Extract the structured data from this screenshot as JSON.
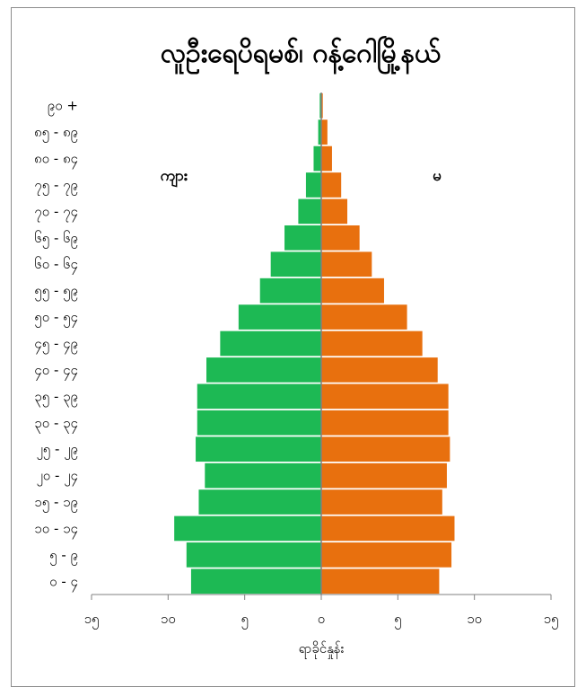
{
  "chart_data": {
    "type": "bar",
    "orientation": "horizontal",
    "title": "လူဦးရေပိရမစ်၊ ဂန့်ဂေါမြို့နယ်",
    "xlabel": "ရာခိုင်နှုန်း",
    "ylabel": "",
    "xlim": [
      -15,
      15
    ],
    "x_tick_values": [
      -15,
      -10,
      -5,
      0,
      5,
      10,
      15
    ],
    "x_tick_labels": [
      "၁၅",
      "၁၀",
      "၅",
      "၀",
      "၅",
      "၁၀",
      "၁၅"
    ],
    "categories": [
      "၀ - ၄",
      "၅ - ၉",
      "၁၀ - ၁၄",
      "၁၅ - ၁၉",
      "၂၀ - ၂၄",
      "၂၅ - ၂၉",
      "၃၀ - ၃၄",
      "၃၅ - ၃၉",
      "၄၀ - ၄၄",
      "၄၅ - ၄၉",
      "၅၀ - ၅၄",
      "၅၅ - ၅၉",
      "၆၀ - ၆၄",
      "၆၅ - ၆၉",
      "၇၀ - ၇၄",
      "၇၅ - ၇၉",
      "၈၀ - ၈၄",
      "၈၅ - ၈၉",
      "၉၀ +"
    ],
    "series": [
      {
        "name": "ကျား",
        "side": "left",
        "color": "#1db954",
        "values": [
          8.5,
          8.8,
          9.6,
          8.0,
          7.6,
          8.2,
          8.1,
          8.1,
          7.5,
          6.6,
          5.4,
          4.0,
          3.3,
          2.4,
          1.5,
          1.0,
          0.5,
          0.2,
          0.1
        ]
      },
      {
        "name": "မ",
        "side": "right",
        "color": "#e8700e",
        "values": [
          7.7,
          8.5,
          8.7,
          7.9,
          8.2,
          8.4,
          8.3,
          8.3,
          7.6,
          6.6,
          5.6,
          4.1,
          3.3,
          2.5,
          1.7,
          1.3,
          0.7,
          0.4,
          0.1
        ]
      }
    ],
    "legend": "inside"
  }
}
